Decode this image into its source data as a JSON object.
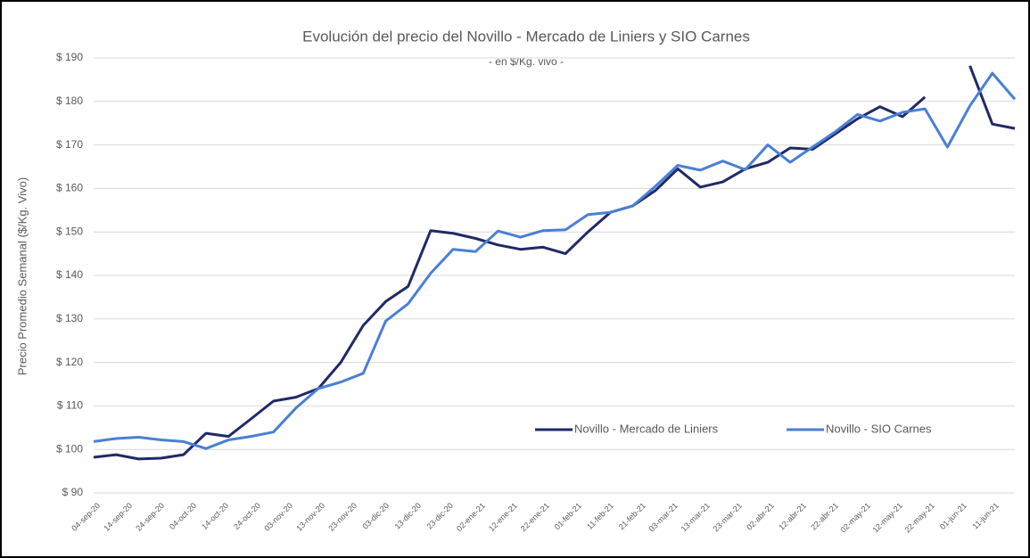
{
  "chart_data": {
    "type": "line",
    "title": "Evolución del precio del Novillo - Mercado de Liniers y SIO Carnes",
    "subtitle": "- en $/Kg. vivo -",
    "y_label": "Precio Promedio Semanal ($/Kg. Vivo)",
    "x": [
      "2020-09-04",
      "2020-09-11",
      "2020-09-18",
      "2020-09-25",
      "2020-10-02",
      "2020-10-09",
      "2020-10-16",
      "2020-10-23",
      "2020-10-30",
      "2020-11-06",
      "2020-11-13",
      "2020-11-20",
      "2020-11-27",
      "2020-12-04",
      "2020-12-11",
      "2020-12-18",
      "2020-12-25",
      "2021-01-01",
      "2021-01-08",
      "2021-01-15",
      "2021-01-22",
      "2021-01-29",
      "2021-02-05",
      "2021-02-12",
      "2021-02-19",
      "2021-02-26",
      "2021-03-05",
      "2021-03-12",
      "2021-03-19",
      "2021-03-26",
      "2021-04-02",
      "2021-04-09",
      "2021-04-16",
      "2021-04-23",
      "2021-04-30",
      "2021-05-07",
      "2021-05-14",
      "2021-05-21",
      "2021-05-28",
      "2021-06-04",
      "2021-06-11",
      "2021-06-18"
    ],
    "series": [
      {
        "name": "Novillo - Mercado de Liniers",
        "color": "#1f2a66",
        "values": [
          98.2,
          98.8,
          97.8,
          98.0,
          98.8,
          103.7,
          103.0,
          107.0,
          111.1,
          112.0,
          114.0,
          120.0,
          128.5,
          134.0,
          137.5,
          150.3,
          149.7,
          148.5,
          147.0,
          146.0,
          146.5,
          145.0,
          150.0,
          154.5,
          156.0,
          159.5,
          164.5,
          160.3,
          161.5,
          164.5,
          166.0,
          169.3,
          169.0,
          172.5,
          176.0,
          178.8,
          176.5,
          181.0,
          null,
          188.2,
          174.8,
          173.8
        ]
      },
      {
        "name": "Novillo -  SIO Carnes",
        "color": "#4a7fd4",
        "values": [
          101.8,
          102.5,
          102.8,
          102.2,
          101.8,
          100.2,
          102.2,
          103.0,
          104.0,
          109.5,
          114.0,
          115.5,
          117.5,
          129.5,
          133.5,
          140.5,
          146.0,
          145.5,
          150.2,
          148.8,
          150.3,
          150.5,
          154.0,
          154.5,
          156.0,
          160.5,
          165.3,
          164.2,
          166.3,
          164.3,
          170.0,
          166.0,
          169.5,
          173.0,
          177.0,
          175.5,
          177.5,
          178.3,
          169.5,
          179.0,
          186.5,
          180.5
        ]
      }
    ],
    "xlim": [
      "2020-09-04",
      "2021-06-18"
    ],
    "xticks": [
      {
        "value": "2020-09-04",
        "label": "04-sep-20"
      },
      {
        "value": "2020-09-14",
        "label": "14-sep-20"
      },
      {
        "value": "2020-09-24",
        "label": "24-sep-20"
      },
      {
        "value": "2020-10-04",
        "label": "04-oct-20"
      },
      {
        "value": "2020-10-14",
        "label": "14-oct-20"
      },
      {
        "value": "2020-10-24",
        "label": "24-oct-20"
      },
      {
        "value": "2020-11-03",
        "label": "03-nov-20"
      },
      {
        "value": "2020-11-13",
        "label": "13-nov-20"
      },
      {
        "value": "2020-11-23",
        "label": "23-nov-20"
      },
      {
        "value": "2020-12-03",
        "label": "03-dic-20"
      },
      {
        "value": "2020-12-13",
        "label": "13-dic-20"
      },
      {
        "value": "2020-12-23",
        "label": "23-dic-20"
      },
      {
        "value": "2021-01-02",
        "label": "02-ene-21"
      },
      {
        "value": "2021-01-12",
        "label": "12-ene-21"
      },
      {
        "value": "2021-01-22",
        "label": "22-ene-21"
      },
      {
        "value": "2021-02-01",
        "label": "01-feb-21"
      },
      {
        "value": "2021-02-11",
        "label": "11-feb-21"
      },
      {
        "value": "2021-02-21",
        "label": "21-feb-21"
      },
      {
        "value": "2021-03-03",
        "label": "03-mar-21"
      },
      {
        "value": "2021-03-13",
        "label": "13-mar-21"
      },
      {
        "value": "2021-03-23",
        "label": "23-mar-21"
      },
      {
        "value": "2021-04-02",
        "label": "02-abr-21"
      },
      {
        "value": "2021-04-12",
        "label": "12-abr-21"
      },
      {
        "value": "2021-04-22",
        "label": "22-abr-21"
      },
      {
        "value": "2021-05-02",
        "label": "02-may-21"
      },
      {
        "value": "2021-05-12",
        "label": "12-may-21"
      },
      {
        "value": "2021-05-22",
        "label": "22-may-21"
      },
      {
        "value": "2021-06-01",
        "label": "01-jun-21"
      },
      {
        "value": "2021-06-11",
        "label": "11-jun-21"
      }
    ],
    "ylim": [
      90,
      190
    ],
    "yticks": [
      {
        "value": 90,
        "label": "$ 90"
      },
      {
        "value": 100,
        "label": "$ 100"
      },
      {
        "value": 110,
        "label": "$ 110"
      },
      {
        "value": 120,
        "label": "$ 120"
      },
      {
        "value": 130,
        "label": "$ 130"
      },
      {
        "value": 140,
        "label": "$ 140"
      },
      {
        "value": 150,
        "label": "$ 150"
      },
      {
        "value": 160,
        "label": "$ 160"
      },
      {
        "value": 170,
        "label": "$ 170"
      },
      {
        "value": 180,
        "label": "$ 180"
      },
      {
        "value": 190,
        "label": "$ 190"
      }
    ],
    "grid": true
  }
}
